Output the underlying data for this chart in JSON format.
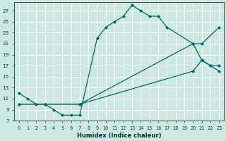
{
  "xlabel": "Humidex (Indice chaleur)",
  "bg_color": "#cce8e0",
  "grid_color": "#b8d8d0",
  "line_color": "#006666",
  "xlim": [
    -0.5,
    23.5
  ],
  "ylim": [
    7,
    28.5
  ],
  "xticks": [
    0,
    1,
    2,
    3,
    4,
    5,
    6,
    7,
    8,
    9,
    10,
    11,
    12,
    13,
    14,
    15,
    16,
    17,
    18,
    19,
    20,
    21,
    22,
    23
  ],
  "yticks": [
    7,
    9,
    11,
    13,
    15,
    17,
    19,
    21,
    23,
    25,
    27
  ],
  "line1_x": [
    0,
    1,
    2,
    3,
    4,
    5,
    6,
    7,
    9,
    10,
    11,
    12,
    13,
    14,
    15,
    16,
    17,
    20,
    21,
    22,
    23
  ],
  "line1_y": [
    12,
    11,
    10,
    10,
    9,
    8,
    8,
    8,
    22,
    24,
    25,
    26,
    28,
    27,
    26,
    26,
    24,
    21,
    18,
    17,
    17
  ],
  "line2_x": [
    0,
    3,
    7,
    20,
    21,
    23
  ],
  "line2_y": [
    10,
    10,
    10,
    21,
    21,
    24
  ],
  "line3_x": [
    0,
    3,
    7,
    20,
    21,
    22,
    23
  ],
  "line3_y": [
    10,
    10,
    10,
    16,
    18,
    17,
    16
  ]
}
